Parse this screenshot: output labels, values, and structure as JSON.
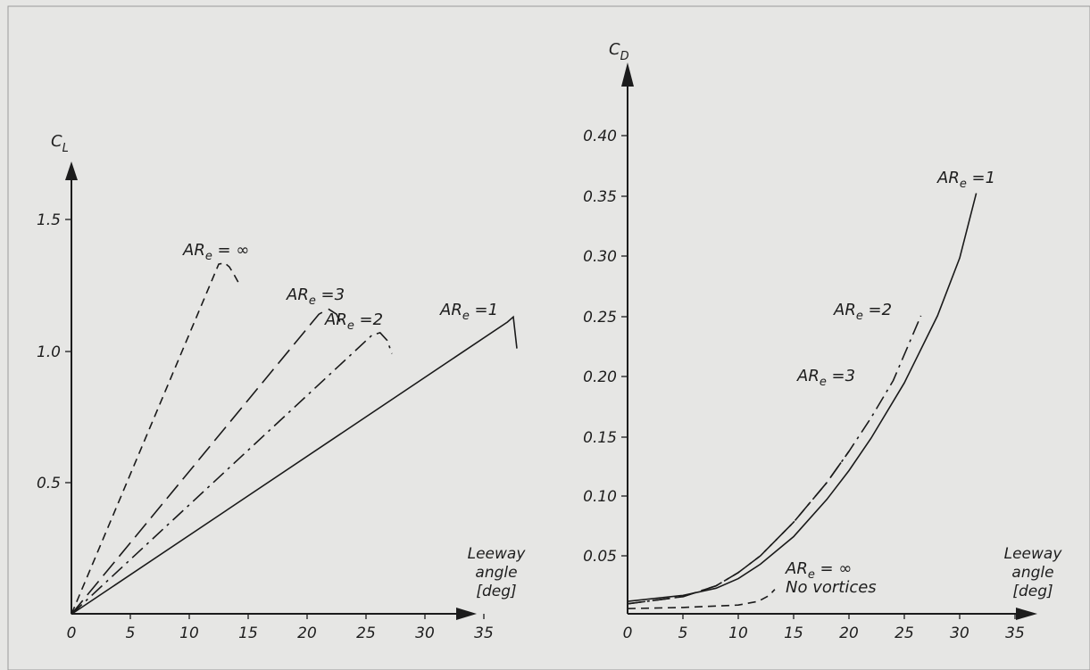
{
  "chart_data": [
    {
      "type": "line",
      "title": "",
      "ylabel": "C",
      "ylabel_subscript": "L",
      "xlabel_lines": [
        "Leeway",
        "angle",
        "[deg]"
      ],
      "xlim": [
        0,
        38
      ],
      "ylim": [
        0,
        1.6
      ],
      "xticks": [
        "0",
        "5",
        "10",
        "15",
        "20",
        "25",
        "30",
        "35"
      ],
      "yticks": [
        "0.5",
        "1.0",
        "1.5"
      ],
      "grid": false,
      "series": [
        {
          "label": "AR",
          "label_subscript": "e",
          "label_suffix": " = ∞",
          "dash": "dashed-short",
          "x": [
            0,
            12.5,
            13.0,
            13.4,
            13.8,
            14.3
          ],
          "y": [
            0,
            1.33,
            1.335,
            1.32,
            1.29,
            1.25
          ]
        },
        {
          "label": "AR",
          "label_subscript": "e",
          "label_suffix": " =3",
          "dash": "dashed-long",
          "x": [
            0,
            21.0,
            21.8,
            22.5,
            23.0
          ],
          "y": [
            0,
            1.14,
            1.16,
            1.14,
            1.09
          ]
        },
        {
          "label": "AR",
          "label_subscript": "e",
          "label_suffix": " =2",
          "dash": "dash-dot",
          "x": [
            0,
            25.5,
            26.2,
            26.8,
            27.2
          ],
          "y": [
            0,
            1.06,
            1.07,
            1.04,
            0.99
          ]
        },
        {
          "label": "AR",
          "label_subscript": "e",
          "label_suffix": " =1",
          "dash": "solid",
          "x": [
            0,
            37.0,
            37.5,
            37.8
          ],
          "y": [
            0,
            1.11,
            1.13,
            1.01
          ]
        }
      ]
    },
    {
      "type": "line",
      "title": "",
      "ylabel": "C",
      "ylabel_subscript": "D",
      "xlabel_lines": [
        "Leeway",
        "angle",
        "[deg]"
      ],
      "xlim": [
        0,
        38
      ],
      "ylim": [
        0,
        0.42
      ],
      "xticks": [
        "0",
        "5",
        "10",
        "15",
        "20",
        "25",
        "30",
        "35"
      ],
      "yticks": [
        "0.05",
        "0.10",
        "0.15",
        "0.20",
        "0.25",
        "0.30",
        "0.35",
        "0.40"
      ],
      "grid": false,
      "series": [
        {
          "label": "AR",
          "label_subscript": "e",
          "label_suffix": " =1",
          "dash": "solid",
          "x": [
            0,
            5,
            8,
            10,
            12,
            15,
            18,
            20,
            22,
            25,
            28,
            30,
            31.5
          ],
          "y": [
            0.012,
            0.017,
            0.023,
            0.031,
            0.043,
            0.066,
            0.097,
            0.121,
            0.148,
            0.194,
            0.25,
            0.298,
            0.352
          ]
        },
        {
          "label": "AR",
          "label_subscript": "e",
          "label_suffix": " =2",
          "dash": "dash-dot",
          "x": [
            0,
            5,
            8,
            10,
            12,
            15,
            18,
            20,
            22,
            24,
            26.5
          ],
          "y": [
            0.01,
            0.016,
            0.025,
            0.036,
            0.05,
            0.078,
            0.111,
            0.137,
            0.165,
            0.196,
            0.25
          ]
        },
        {
          "label": "AR",
          "label_subscript": "e",
          "label_suffix": " =3",
          "dash": "dashed-long",
          "x": [
            0,
            5,
            8,
            10,
            12,
            15,
            18,
            20
          ],
          "y": [
            0.01,
            0.016,
            0.025,
            0.036,
            0.05,
            0.078,
            0.111,
            0.137
          ]
        },
        {
          "label": "AR",
          "label_subscript": "e",
          "label_suffix": " = ∞",
          "label_line2": "No vortices",
          "dash": "dashed-short",
          "x": [
            0,
            5,
            10,
            11.8,
            12.8,
            13.3
          ],
          "y": [
            0.006,
            0.007,
            0.009,
            0.012,
            0.017,
            0.022
          ]
        }
      ]
    }
  ]
}
